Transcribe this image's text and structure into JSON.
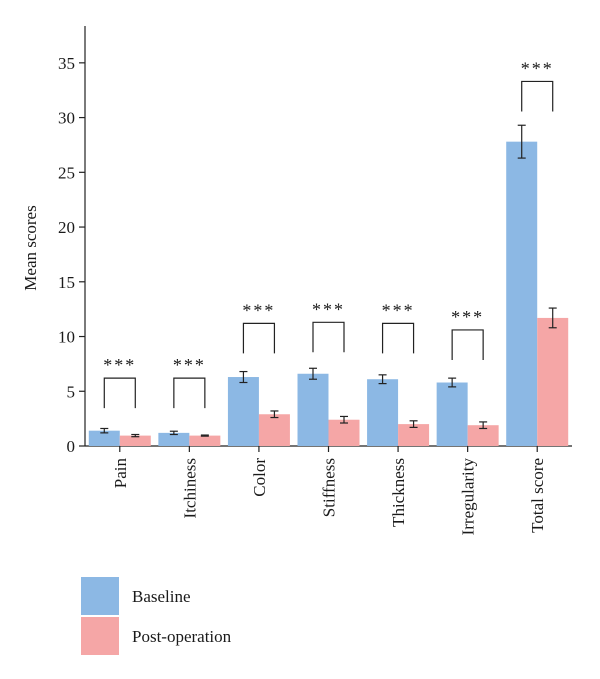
{
  "chart_data": {
    "type": "bar",
    "ylabel": "Mean scores",
    "xlabel": "",
    "title": "",
    "ylim": [
      0,
      38
    ],
    "yticks": [
      0,
      5,
      10,
      15,
      20,
      25,
      30,
      35
    ],
    "grid": false,
    "legend_position": "bottom-left",
    "categories": [
      "Pain",
      "Itchiness",
      "Color",
      "Stiffness",
      "Thickness",
      "Irregularity",
      "Total score"
    ],
    "series": [
      {
        "name": "Baseline",
        "color": "#8cb8e4",
        "values": [
          1.4,
          1.2,
          6.3,
          6.6,
          6.1,
          5.8,
          27.8
        ],
        "errors": [
          0.2,
          0.15,
          0.5,
          0.5,
          0.4,
          0.4,
          1.5
        ]
      },
      {
        "name": "Post-operation",
        "color": "#f5a6a6",
        "values": [
          0.95,
          0.95,
          2.9,
          2.4,
          2.0,
          1.9,
          11.7
        ],
        "errors": [
          0.1,
          0.05,
          0.3,
          0.3,
          0.3,
          0.3,
          0.9
        ]
      }
    ],
    "significance": [
      {
        "category": "Pain",
        "label": "***",
        "bracket_y": 6.2
      },
      {
        "category": "Itchiness",
        "label": "***",
        "bracket_y": 6.2
      },
      {
        "category": "Color",
        "label": "***",
        "bracket_y": 11.2
      },
      {
        "category": "Stiffness",
        "label": "***",
        "bracket_y": 11.3
      },
      {
        "category": "Thickness",
        "label": "***",
        "bracket_y": 11.2
      },
      {
        "category": "Irregularity",
        "label": "***",
        "bracket_y": 10.6
      },
      {
        "category": "Total score",
        "label": "***",
        "bracket_y": 33.3
      }
    ]
  }
}
